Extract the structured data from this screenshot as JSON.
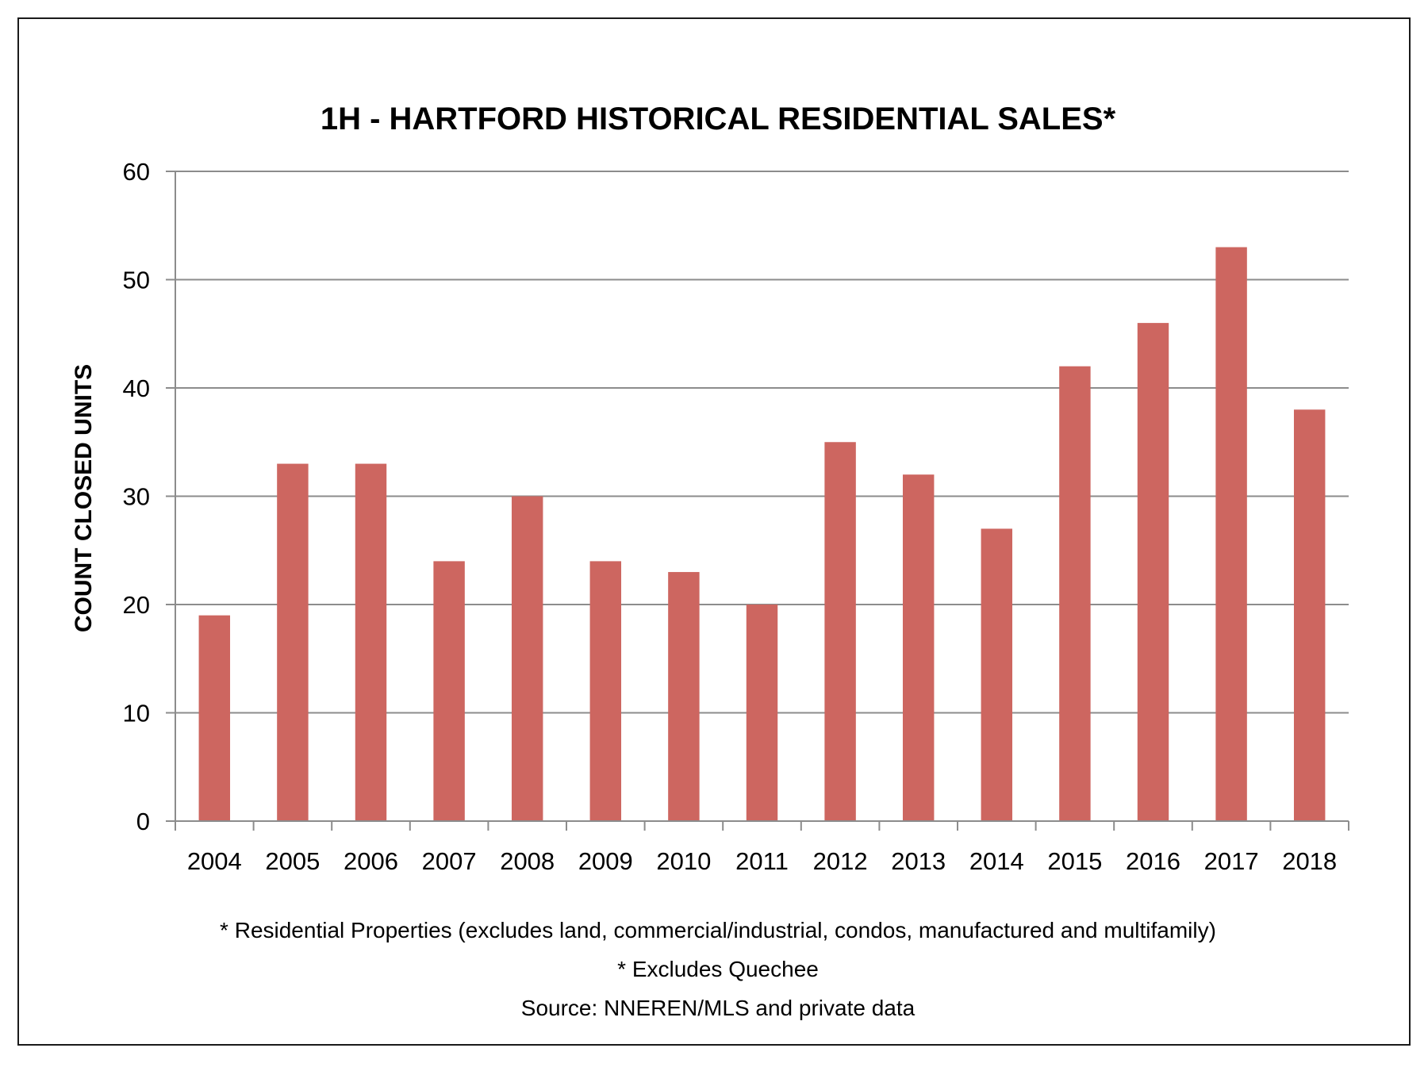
{
  "chart_data": {
    "type": "bar",
    "title": "1H - HARTFORD HISTORICAL RESIDENTIAL SALES*",
    "ylabel": "COUNT CLOSED UNITS",
    "xlabel": "",
    "categories": [
      "2004",
      "2005",
      "2006",
      "2007",
      "2008",
      "2009",
      "2010",
      "2011",
      "2012",
      "2013",
      "2014",
      "2015",
      "2016",
      "2017",
      "2018"
    ],
    "values": [
      19,
      33,
      33,
      24,
      30,
      24,
      23,
      20,
      35,
      32,
      27,
      42,
      46,
      53,
      38
    ],
    "ylim": [
      0,
      60
    ],
    "yticks": [
      "0",
      "10",
      "20",
      "30",
      "40",
      "50",
      "60"
    ],
    "grid": true,
    "bar_color": "#cd6660",
    "grid_color": "#8c8c8c",
    "legend": "none"
  },
  "footnotes": {
    "line1": "* Residential Properties (excludes land, commercial/industrial, condos, manufactured and multifamily)",
    "line2": "* Excludes Quechee",
    "line3": "Source: NNEREN/MLS and private data"
  }
}
